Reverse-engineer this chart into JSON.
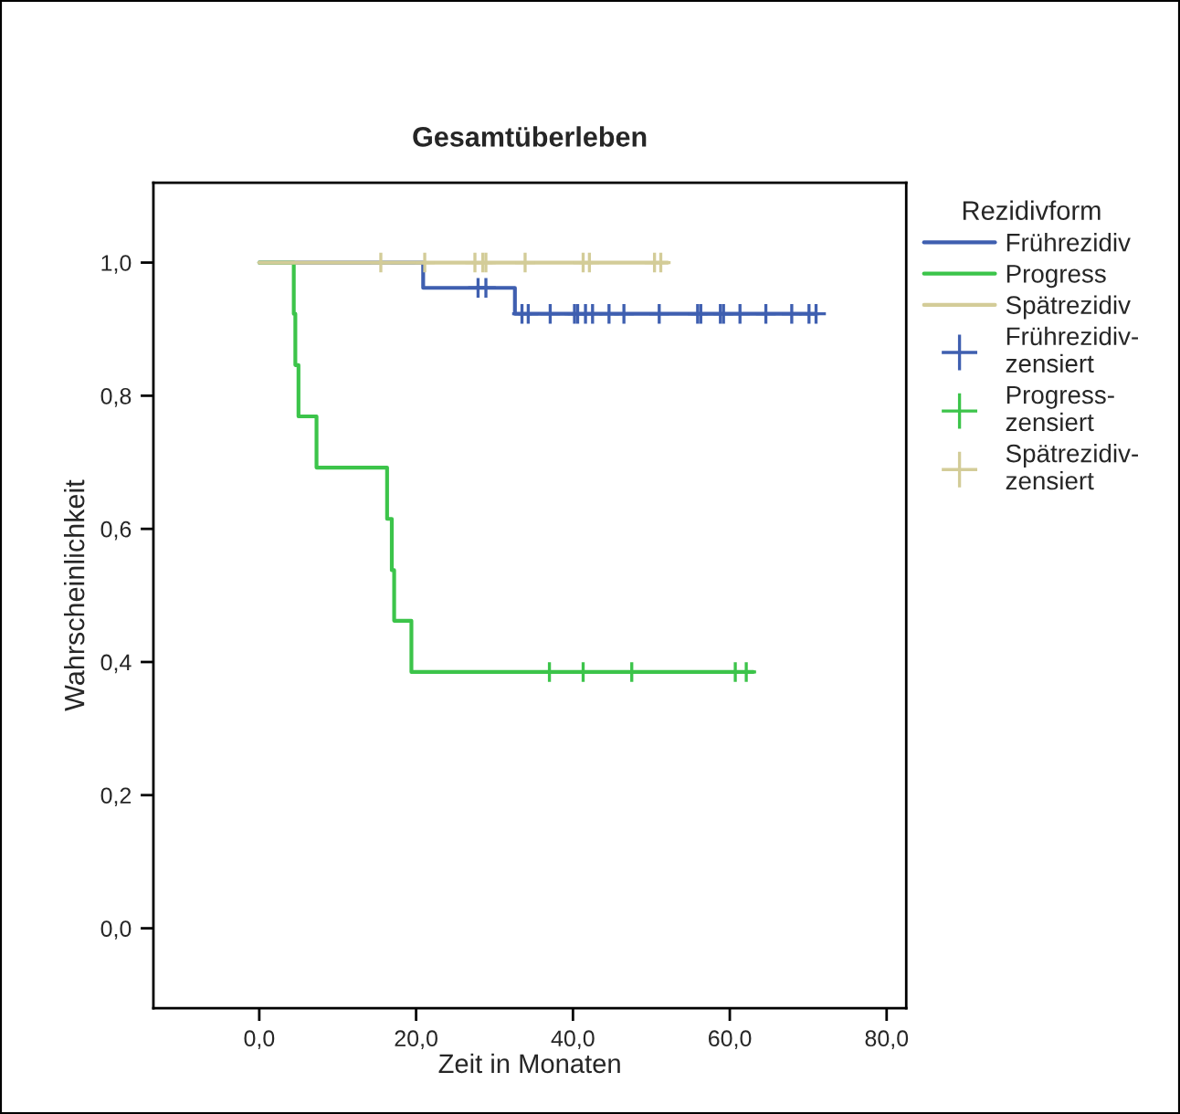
{
  "chart_data": {
    "type": "step",
    "title": "Gesamtüberleben",
    "xlabel": "Zeit in Monaten",
    "ylabel": "Wahrscheinlichkeit",
    "legend_title": "Rezidivform",
    "legend": "right",
    "grid": false,
    "xlim": [
      -13.5,
      82.5
    ],
    "ylim": [
      -0.12,
      1.12
    ],
    "xticks": [
      {
        "value": 0,
        "label": "0,0"
      },
      {
        "value": 20,
        "label": "20,0"
      },
      {
        "value": 40,
        "label": "40,0"
      },
      {
        "value": 60,
        "label": "60,0"
      },
      {
        "value": 80,
        "label": "80,0"
      }
    ],
    "yticks": [
      {
        "value": 0,
        "label": "0,0"
      },
      {
        "value": 0.2,
        "label": "0,2"
      },
      {
        "value": 0.4,
        "label": "0,4"
      },
      {
        "value": 0.6,
        "label": "0,6"
      },
      {
        "value": 0.8,
        "label": "0,8"
      },
      {
        "value": 1,
        "label": "1,0"
      }
    ],
    "series": [
      {
        "name": "Frührezidiv",
        "color": "#3f5fb0",
        "x": [
          0,
          20.9,
          32.6,
          71.0
        ],
        "values": [
          1,
          0.962,
          0.923,
          0.923
        ]
      },
      {
        "name": "Progress",
        "color": "#3cc44a",
        "x": [
          0,
          4.4,
          4.6,
          5.0,
          7.3,
          16.3,
          16.9,
          17.2,
          19.4,
          63.0
        ],
        "values": [
          1,
          0.923,
          0.846,
          0.769,
          0.692,
          0.615,
          0.538,
          0.462,
          0.385,
          0.385
        ]
      },
      {
        "name": "Spätrezidiv",
        "color": "#d3cc98",
        "x": [
          0,
          52.1
        ],
        "values": [
          1,
          1
        ]
      },
      {
        "name": "Frührezidiv-\nzensiert",
        "type": "scatter",
        "marker": "cross",
        "color": "#3f5fb0",
        "x": [
          27.9,
          28.9,
          33.5,
          34.3,
          37.1,
          40.2,
          40.6,
          41.6,
          42.5,
          44.6,
          46.5,
          51.0,
          55.9,
          56.3,
          58.8,
          59.2,
          61.3,
          64.6,
          67.9,
          70.1,
          71.0
        ],
        "values": [
          0.962,
          0.962,
          0.923,
          0.923,
          0.923,
          0.923,
          0.923,
          0.923,
          0.923,
          0.923,
          0.923,
          0.923,
          0.923,
          0.923,
          0.923,
          0.923,
          0.923,
          0.923,
          0.923,
          0.923,
          0.923
        ]
      },
      {
        "name": "Progress-\nzensiert",
        "type": "scatter",
        "marker": "cross",
        "color": "#3cc44a",
        "x": [
          37.0,
          41.3,
          47.5,
          60.7,
          62.1
        ],
        "values": [
          0.385,
          0.385,
          0.385,
          0.385,
          0.385
        ]
      },
      {
        "name": "Spätrezidiv-\nzensiert",
        "type": "scatter",
        "marker": "cross",
        "color": "#d3cc98",
        "x": [
          15.5,
          21.1,
          27.5,
          28.5,
          28.9,
          33.9,
          41.3,
          42.1,
          50.4,
          51.2
        ],
        "values": [
          1,
          1,
          1,
          1,
          1,
          1,
          1,
          1,
          1,
          1
        ]
      }
    ]
  }
}
